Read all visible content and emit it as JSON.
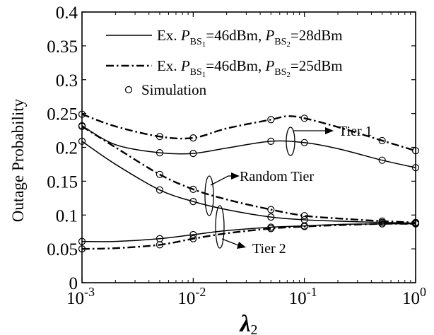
{
  "chart_data": {
    "type": "line",
    "xscale": "log",
    "xlim": [
      0.001,
      1
    ],
    "ylim": [
      0,
      0.4
    ],
    "grid": false,
    "legend_position": "top-right",
    "xlabel": {
      "main": "λ",
      "sub": "2"
    },
    "ylabel": "Outage Probability",
    "x_ticks": [
      {
        "base": "10",
        "exp": "-3"
      },
      {
        "base": "10",
        "exp": "-2"
      },
      {
        "base": "10",
        "exp": "-1"
      },
      {
        "base": "10",
        "exp": "0"
      }
    ],
    "y_tick_values": [
      0,
      0.05,
      0.1,
      0.15,
      0.2,
      0.25,
      0.3,
      0.35,
      0.4
    ],
    "y_tick_labels": [
      "0",
      "0.05",
      "0.1",
      "0.15",
      "0.2",
      "0.25",
      "0.3",
      "0.35",
      "0.4"
    ],
    "legend": [
      {
        "style": "solid",
        "text": [
          "Ex. ",
          "P",
          "BS",
          "1",
          "=46dBm, ",
          "P",
          "BS",
          "2",
          "=28dBm"
        ]
      },
      {
        "style": "dashdot",
        "text": [
          "Ex. ",
          "P",
          "BS",
          "1",
          "=46dBm, ",
          "P",
          "BS",
          "2",
          "=25dBm"
        ]
      },
      {
        "style": "marker",
        "text": [
          "Simulation"
        ]
      }
    ],
    "annotations": [
      "Tier 1",
      "Random Tier",
      "Tier 2"
    ],
    "series": [
      {
        "group": "tier1",
        "style": "solid",
        "x": [
          0.001,
          0.002,
          0.005,
          0.01,
          0.02,
          0.05,
          0.1,
          0.2,
          0.5,
          1
        ],
        "y": [
          0.232,
          0.204,
          0.192,
          0.191,
          0.199,
          0.209,
          0.207,
          0.198,
          0.181,
          0.17
        ]
      },
      {
        "group": "tier1",
        "style": "dashdot",
        "x": [
          0.001,
          0.002,
          0.005,
          0.01,
          0.02,
          0.05,
          0.07,
          0.1,
          0.2,
          0.5,
          1
        ],
        "y": [
          0.249,
          0.231,
          0.216,
          0.214,
          0.228,
          0.241,
          0.246,
          0.243,
          0.23,
          0.21,
          0.195
        ]
      },
      {
        "group": "random",
        "style": "solid",
        "x": [
          0.001,
          0.002,
          0.005,
          0.01,
          0.02,
          0.05,
          0.1,
          0.2,
          0.5,
          1
        ],
        "y": [
          0.209,
          0.175,
          0.137,
          0.12,
          0.108,
          0.097,
          0.093,
          0.091,
          0.089,
          0.088
        ]
      },
      {
        "group": "random",
        "style": "dashdot",
        "x": [
          0.001,
          0.002,
          0.005,
          0.01,
          0.02,
          0.05,
          0.1,
          0.2,
          0.5,
          1
        ],
        "y": [
          0.231,
          0.2,
          0.16,
          0.138,
          0.123,
          0.108,
          0.099,
          0.095,
          0.091,
          0.089
        ]
      },
      {
        "group": "tier2",
        "style": "solid",
        "x": [
          0.001,
          0.002,
          0.005,
          0.01,
          0.02,
          0.05,
          0.1,
          0.2,
          0.5,
          1
        ],
        "y": [
          0.061,
          0.061,
          0.065,
          0.071,
          0.077,
          0.082,
          0.084,
          0.086,
          0.087,
          0.087
        ]
      },
      {
        "group": "tier2",
        "style": "dashdot",
        "x": [
          0.001,
          0.002,
          0.005,
          0.01,
          0.02,
          0.05,
          0.1,
          0.2,
          0.5,
          1
        ],
        "y": [
          0.05,
          0.051,
          0.056,
          0.065,
          0.073,
          0.08,
          0.083,
          0.085,
          0.087,
          0.087
        ]
      },
      {
        "group": "simulation",
        "style": "marker",
        "x": [
          0.001,
          0.005,
          0.01,
          0.05,
          0.1,
          0.5,
          1,
          0.001,
          0.005,
          0.01,
          0.05,
          0.1,
          0.5,
          1,
          0.001,
          0.005,
          0.01,
          0.05,
          0.1,
          0.5,
          1,
          0.001,
          0.005,
          0.01,
          0.05,
          0.1,
          0.5,
          1,
          0.001,
          0.005,
          0.01,
          0.05,
          0.1,
          0.5,
          1,
          0.001,
          0.005,
          0.01,
          0.05,
          0.1,
          0.5,
          1
        ],
        "y": [
          0.232,
          0.192,
          0.191,
          0.209,
          0.207,
          0.181,
          0.17,
          0.249,
          0.216,
          0.214,
          0.241,
          0.243,
          0.21,
          0.195,
          0.209,
          0.137,
          0.12,
          0.097,
          0.093,
          0.089,
          0.088,
          0.231,
          0.16,
          0.138,
          0.108,
          0.099,
          0.091,
          0.089,
          0.061,
          0.065,
          0.071,
          0.082,
          0.084,
          0.087,
          0.087,
          0.05,
          0.056,
          0.065,
          0.08,
          0.083,
          0.087,
          0.087
        ]
      }
    ]
  }
}
